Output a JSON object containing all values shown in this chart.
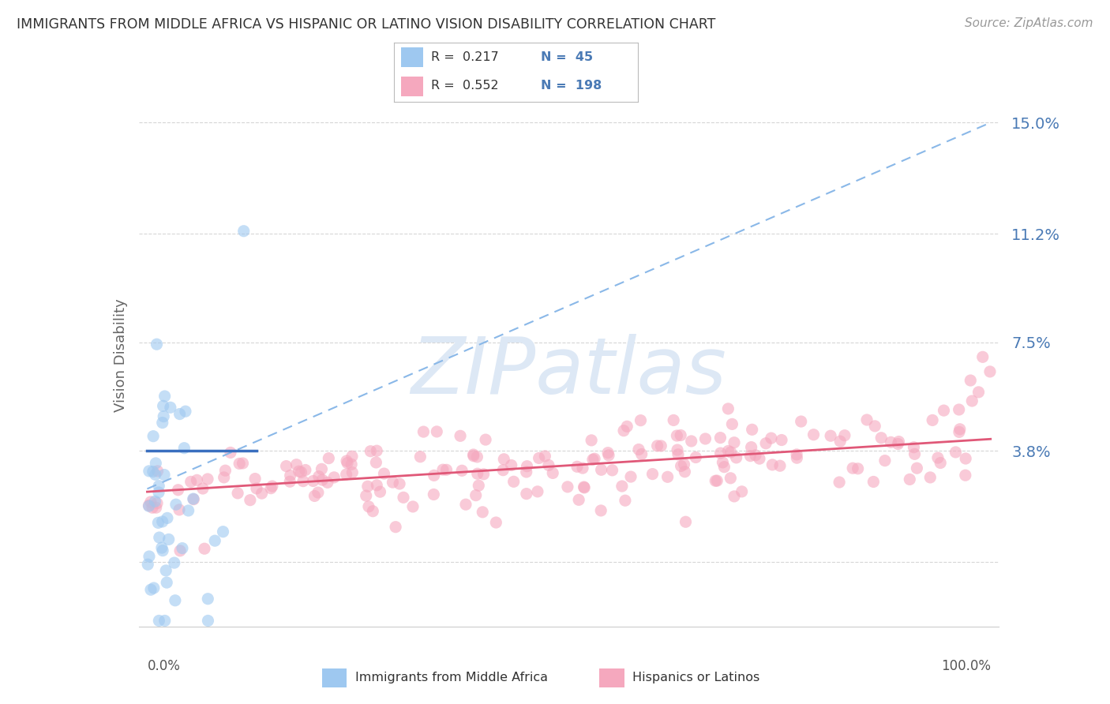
{
  "title": "IMMIGRANTS FROM MIDDLE AFRICA VS HISPANIC OR LATINO VISION DISABILITY CORRELATION CHART",
  "source": "Source: ZipAtlas.com",
  "ylabel": "Vision Disability",
  "yticks": [
    0.0,
    0.038,
    0.075,
    0.112,
    0.15
  ],
  "ytick_labels": [
    "",
    "3.8%",
    "7.5%",
    "11.2%",
    "15.0%"
  ],
  "xlim": [
    -0.01,
    1.01
  ],
  "ylim": [
    -0.022,
    0.163
  ],
  "legend_r1": "R =  0.217",
  "legend_n1": "N =  45",
  "legend_r2": "R =  0.552",
  "legend_n2": "N =  198",
  "series1_color": "#9ec8f0",
  "series2_color": "#f5a8be",
  "trendline1_solid_color": "#3a6fbf",
  "trendline1_dashed_color": "#8ab8e8",
  "trendline2_color": "#e05878",
  "watermark_color": "#dde8f5",
  "background_color": "#ffffff",
  "grid_color": "#cccccc",
  "title_color": "#333333",
  "ytick_color": "#4a7ab5",
  "series1_R": 0.217,
  "series1_N": 45,
  "series2_R": 0.552,
  "series2_N": 198,
  "trendline1_x0": 0.0,
  "trendline1_y0": 0.025,
  "trendline1_x1": 1.0,
  "trendline1_y1": 0.15,
  "trendline1_solid_x0": 0.0,
  "trendline1_solid_y0": 0.038,
  "trendline1_solid_x1": 0.13,
  "trendline1_solid_y1": 0.038,
  "trendline2_x0": 0.0,
  "trendline2_y0": 0.024,
  "trendline2_x1": 1.0,
  "trendline2_y1": 0.042
}
